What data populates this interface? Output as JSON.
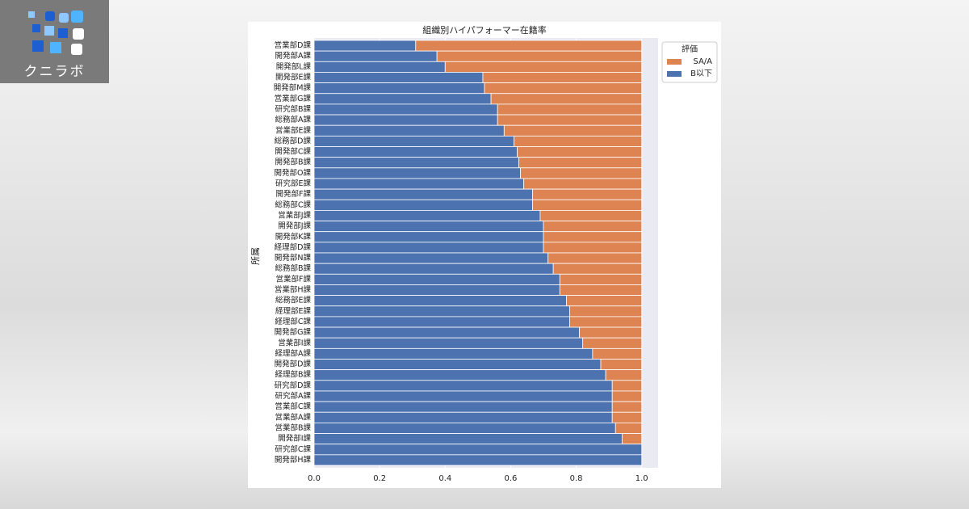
{
  "logo": "クニラボ",
  "chart_data": {
    "type": "stacked_barh",
    "title": "組織別ハイパフォーマー在籍率",
    "y_label": "所属",
    "categories": [
      "営業部D課",
      "開発部A課",
      "開発部L課",
      "開発部E課",
      "開発部M課",
      "営業部G課",
      "研究部B課",
      "総務部A課",
      "営業部E課",
      "総務部D課",
      "開発部C課",
      "開発部B課",
      "開発部O課",
      "研究部E課",
      "開発部F課",
      "総務部C課",
      "営業部J課",
      "開発部J課",
      "開発部K課",
      "経理部D課",
      "開発部N課",
      "総務部B課",
      "営業部F課",
      "営業部H課",
      "総務部E課",
      "経理部E課",
      "経理部C課",
      "開発部G課",
      "営業部I課",
      "経理部A課",
      "開発部D課",
      "経理部B課",
      "研究部D課",
      "研究部A課",
      "営業部C課",
      "営業部A課",
      "営業部B課",
      "開発部I課",
      "研究部C課",
      "開発部H課"
    ],
    "series": [
      {
        "name": "SA/A",
        "color": "#dd8452",
        "values": [
          0.69,
          0.625,
          0.6,
          0.485,
          0.48,
          0.46,
          0.44,
          0.44,
          0.42,
          0.39,
          0.38,
          0.375,
          0.37,
          0.36,
          0.333,
          0.333,
          0.31,
          0.3,
          0.3,
          0.3,
          0.286,
          0.27,
          0.25,
          0.25,
          0.23,
          0.22,
          0.22,
          0.19,
          0.18,
          0.15,
          0.125,
          0.11,
          0.09,
          0.09,
          0.09,
          0.09,
          0.08,
          0.06,
          0,
          0
        ]
      },
      {
        "name": "B以下",
        "color": "#4c72b0",
        "values": [
          0.31,
          0.375,
          0.4,
          0.515,
          0.52,
          0.54,
          0.56,
          0.56,
          0.58,
          0.61,
          0.62,
          0.625,
          0.63,
          0.64,
          0.667,
          0.667,
          0.69,
          0.7,
          0.7,
          0.7,
          0.714,
          0.73,
          0.75,
          0.75,
          0.77,
          0.78,
          0.78,
          0.81,
          0.82,
          0.85,
          0.875,
          0.89,
          0.91,
          0.91,
          0.91,
          0.91,
          0.92,
          0.94,
          1.0,
          1.0
        ]
      }
    ],
    "legend_title": "評価",
    "legend": "upper right",
    "xlim": [
      0,
      1.05
    ],
    "xticks": [
      {
        "value": 0,
        "label": "0.0"
      },
      0.2,
      0.4,
      0.6,
      0.8,
      {
        "value": 1,
        "label": "1.0"
      }
    ],
    "grid": true
  }
}
